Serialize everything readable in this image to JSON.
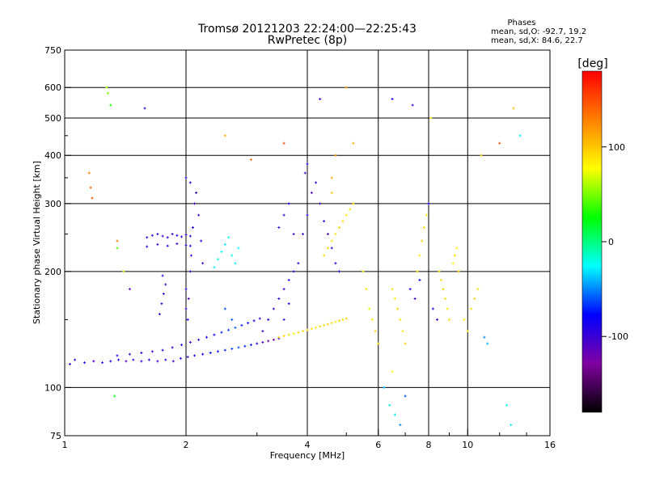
{
  "chart_data": {
    "type": "scatter",
    "title": "Tromsø 20121203 22:24:00—22:25:43",
    "subtitle": "RwPretec (8p)",
    "xlabel": "Frequency [MHz]",
    "ylabel": "Stationary phase Virtual Height [km]",
    "x_scale": "log",
    "y_scale": "log",
    "xlim": [
      1,
      16
    ],
    "ylim": [
      75,
      750
    ],
    "x_ticks": [
      1,
      2,
      4,
      6,
      8,
      10,
      16
    ],
    "y_ticks": [
      75,
      100,
      200,
      300,
      400,
      500,
      600,
      750
    ],
    "grid": true,
    "phases": {
      "heading": "Phases",
      "line_o": "mean, sd,O: -92.7, 19.2",
      "line_x": "mean, sd,X:  84.6, 22.7"
    },
    "colorbar": {
      "label": "[deg]",
      "min": -180,
      "max": 180,
      "ticks": [
        100,
        0,
        -100
      ],
      "tick_labels": [
        "100",
        "0",
        "-100"
      ],
      "colors": [
        "#ff0000",
        "#ff8000",
        "#ffff00",
        "#00ff00",
        "#00ffff",
        "#0000ff",
        "#8000a0",
        "#000000"
      ]
    },
    "series": [
      {
        "points": [
          [
            1.03,
            115,
            -95
          ],
          [
            1.06,
            118,
            -100
          ],
          [
            1.12,
            116,
            -90
          ],
          [
            1.18,
            117,
            -105
          ],
          [
            1.24,
            116,
            -95
          ],
          [
            1.3,
            117,
            -100
          ],
          [
            1.36,
            118,
            -90
          ],
          [
            1.42,
            117,
            -110
          ],
          [
            1.48,
            118,
            -95
          ],
          [
            1.55,
            117,
            -100
          ],
          [
            1.62,
            118,
            -90
          ],
          [
            1.7,
            117,
            -105
          ],
          [
            1.78,
            118,
            -95
          ],
          [
            1.86,
            117,
            -100
          ],
          [
            1.94,
            119,
            -90
          ],
          [
            2.02,
            120,
            -105
          ],
          [
            2.1,
            121,
            -95
          ],
          [
            2.2,
            122,
            -85
          ],
          [
            2.3,
            123,
            -80
          ],
          [
            2.4,
            124,
            -75
          ],
          [
            2.5,
            125,
            -70
          ],
          [
            2.6,
            126,
            -65
          ],
          [
            2.7,
            127,
            -60
          ],
          [
            2.8,
            128,
            -70
          ],
          [
            2.9,
            129,
            -75
          ],
          [
            3.0,
            130,
            -90
          ],
          [
            3.1,
            131,
            -110
          ],
          [
            3.2,
            132,
            -120
          ],
          [
            3.3,
            133,
            -130
          ],
          [
            3.4,
            134,
            -100
          ],
          [
            1.35,
            121,
            -95
          ],
          [
            1.45,
            122,
            -100
          ],
          [
            1.55,
            123,
            -90
          ],
          [
            1.65,
            124,
            -105
          ],
          [
            1.75,
            125,
            -95
          ],
          [
            1.85,
            127,
            -100
          ],
          [
            1.95,
            129,
            -90
          ],
          [
            2.05,
            131,
            -105
          ],
          [
            2.15,
            133,
            -95
          ],
          [
            2.25,
            135,
            -85
          ],
          [
            2.35,
            137,
            -80
          ],
          [
            2.45,
            139,
            -70
          ],
          [
            2.55,
            141,
            -65
          ],
          [
            2.65,
            143,
            -60
          ],
          [
            2.75,
            145,
            -70
          ],
          [
            2.85,
            147,
            -75
          ],
          [
            2.95,
            149,
            -90
          ],
          [
            3.05,
            151,
            -100
          ],
          [
            1.6,
            245,
            -95
          ],
          [
            1.65,
            248,
            -100
          ],
          [
            1.7,
            250,
            -90
          ],
          [
            1.75,
            247,
            -105
          ],
          [
            1.8,
            245,
            -95
          ],
          [
            1.85,
            250,
            -100
          ],
          [
            1.9,
            248,
            -90
          ],
          [
            1.95,
            246,
            -105
          ],
          [
            2.0,
            249,
            -95
          ],
          [
            2.05,
            247,
            -100
          ],
          [
            1.6,
            232,
            -95
          ],
          [
            1.7,
            235,
            -100
          ],
          [
            1.8,
            233,
            -90
          ],
          [
            1.9,
            236,
            -105
          ],
          [
            2.0,
            234,
            -95
          ],
          [
            2.05,
            233,
            -100
          ],
          [
            2.0,
            180,
            -95
          ],
          [
            2.0,
            160,
            -100
          ],
          [
            2.02,
            150,
            -90
          ],
          [
            2.03,
            170,
            -105
          ],
          [
            2.05,
            200,
            -95
          ],
          [
            2.06,
            220,
            -100
          ],
          [
            2.08,
            260,
            -90
          ],
          [
            2.1,
            300,
            -105
          ],
          [
            2.12,
            320,
            -95
          ],
          [
            2.15,
            280,
            -100
          ],
          [
            2.18,
            240,
            -90
          ],
          [
            2.2,
            210,
            -105
          ],
          [
            2.0,
            350,
            -100
          ],
          [
            2.05,
            340,
            -95
          ],
          [
            1.72,
            155,
            -95
          ],
          [
            1.74,
            165,
            -100
          ],
          [
            1.76,
            175,
            -90
          ],
          [
            1.78,
            185,
            -105
          ],
          [
            1.75,
            195,
            -95
          ],
          [
            2.35,
            205,
            -30
          ],
          [
            2.4,
            215,
            -20
          ],
          [
            2.45,
            225,
            -25
          ],
          [
            2.5,
            235,
            -30
          ],
          [
            2.55,
            245,
            -25
          ],
          [
            2.6,
            220,
            -20
          ],
          [
            2.65,
            210,
            -30
          ],
          [
            2.7,
            230,
            -25
          ],
          [
            2.5,
            160,
            -60
          ],
          [
            2.6,
            150,
            -60
          ],
          [
            3.1,
            140,
            -100
          ],
          [
            3.2,
            150,
            -90
          ],
          [
            3.3,
            160,
            -100
          ],
          [
            3.4,
            170,
            -90
          ],
          [
            3.5,
            180,
            -100
          ],
          [
            3.6,
            190,
            -90
          ],
          [
            3.7,
            200,
            -100
          ],
          [
            3.8,
            210,
            -90
          ],
          [
            3.5,
            150,
            -100
          ],
          [
            3.6,
            165,
            -90
          ],
          [
            3.4,
            260,
            -100
          ],
          [
            3.5,
            280,
            -100
          ],
          [
            3.6,
            300,
            -90
          ],
          [
            3.7,
            250,
            -100
          ],
          [
            3.9,
            250,
            -100
          ],
          [
            4.0,
            280,
            -90
          ],
          [
            4.1,
            320,
            -105
          ],
          [
            4.2,
            340,
            -95
          ],
          [
            4.3,
            300,
            -100
          ],
          [
            4.4,
            270,
            -90
          ],
          [
            4.5,
            250,
            -105
          ],
          [
            4.6,
            230,
            -95
          ],
          [
            4.7,
            210,
            -100
          ],
          [
            4.8,
            200,
            -90
          ],
          [
            3.95,
            360,
            -100
          ],
          [
            4.0,
            380,
            -90
          ],
          [
            3.4,
            135,
            90
          ],
          [
            3.5,
            136,
            95
          ],
          [
            3.6,
            137,
            90
          ],
          [
            3.7,
            138,
            85
          ],
          [
            3.8,
            139,
            95
          ],
          [
            3.9,
            140,
            90
          ],
          [
            4.0,
            141,
            95
          ],
          [
            4.1,
            142,
            90
          ],
          [
            4.2,
            143,
            85
          ],
          [
            4.3,
            144,
            95
          ],
          [
            4.4,
            145,
            90
          ],
          [
            4.5,
            146,
            95
          ],
          [
            4.6,
            147,
            90
          ],
          [
            4.7,
            148,
            85
          ],
          [
            4.8,
            149,
            95
          ],
          [
            4.9,
            150,
            90
          ],
          [
            5.0,
            151,
            95
          ],
          [
            4.4,
            220,
            90
          ],
          [
            4.5,
            230,
            95
          ],
          [
            4.6,
            240,
            85
          ],
          [
            4.7,
            250,
            90
          ],
          [
            4.8,
            260,
            95
          ],
          [
            4.9,
            270,
            90
          ],
          [
            5.0,
            280,
            85
          ],
          [
            5.1,
            290,
            90
          ],
          [
            5.2,
            300,
            95
          ],
          [
            4.6,
            350,
            110
          ],
          [
            4.7,
            400,
            120
          ],
          [
            4.6,
            320,
            100
          ],
          [
            5.5,
            200,
            80
          ],
          [
            5.6,
            180,
            90
          ],
          [
            5.7,
            160,
            70
          ],
          [
            5.8,
            150,
            85
          ],
          [
            5.9,
            140,
            95
          ],
          [
            6.0,
            130,
            90
          ],
          [
            6.5,
            180,
            90
          ],
          [
            6.6,
            170,
            85
          ],
          [
            6.7,
            160,
            95
          ],
          [
            6.8,
            150,
            90
          ],
          [
            6.9,
            140,
            85
          ],
          [
            7.0,
            130,
            95
          ],
          [
            6.2,
            100,
            -40
          ],
          [
            6.4,
            90,
            -20
          ],
          [
            6.6,
            85,
            -30
          ],
          [
            6.8,
            80,
            -50
          ],
          [
            7.0,
            95,
            -60
          ],
          [
            6.5,
            110,
            80
          ],
          [
            7.5,
            200,
            90
          ],
          [
            7.6,
            220,
            85
          ],
          [
            7.7,
            240,
            95
          ],
          [
            7.8,
            260,
            90
          ],
          [
            7.9,
            280,
            85
          ],
          [
            8.0,
            300,
            -90
          ],
          [
            8.5,
            200,
            85
          ],
          [
            8.6,
            190,
            90
          ],
          [
            8.7,
            180,
            95
          ],
          [
            8.8,
            170,
            90
          ],
          [
            8.9,
            160,
            85
          ],
          [
            9.0,
            150,
            90
          ],
          [
            9.2,
            210,
            80
          ],
          [
            9.3,
            220,
            90
          ],
          [
            9.4,
            230,
            85
          ],
          [
            9.5,
            200,
            95
          ],
          [
            7.2,
            180,
            -90
          ],
          [
            7.4,
            170,
            -100
          ],
          [
            7.6,
            190,
            -80
          ],
          [
            8.2,
            160,
            -100
          ],
          [
            8.4,
            150,
            -95
          ],
          [
            9.8,
            150,
            80
          ],
          [
            10.0,
            140,
            85
          ],
          [
            10.2,
            160,
            90
          ],
          [
            10.4,
            170,
            95
          ],
          [
            10.6,
            180,
            90
          ],
          [
            11.0,
            135,
            -50
          ],
          [
            11.2,
            130,
            -40
          ],
          [
            12.8,
            80,
            -30
          ],
          [
            1.15,
            360,
            130
          ],
          [
            1.16,
            330,
            140
          ],
          [
            1.17,
            310,
            150
          ],
          [
            1.27,
            600,
            60
          ],
          [
            1.28,
            580,
            50
          ],
          [
            1.3,
            540,
            30
          ],
          [
            1.35,
            240,
            130
          ],
          [
            1.4,
            200,
            70
          ],
          [
            1.45,
            180,
            -120
          ],
          [
            1.35,
            230,
            40
          ],
          [
            1.33,
            95,
            20
          ],
          [
            1.58,
            530,
            -100
          ],
          [
            2.5,
            450,
            110
          ],
          [
            2.9,
            390,
            140
          ],
          [
            3.5,
            430,
            150
          ],
          [
            4.3,
            560,
            -100
          ],
          [
            5.0,
            600,
            120
          ],
          [
            5.2,
            430,
            110
          ],
          [
            6.5,
            560,
            -90
          ],
          [
            7.3,
            540,
            -100
          ],
          [
            8.1,
            500,
            90
          ],
          [
            10.8,
            400,
            95
          ],
          [
            12.0,
            430,
            150
          ],
          [
            13.5,
            450,
            -30
          ],
          [
            13.0,
            530,
            100
          ],
          [
            12.5,
            90,
            -20
          ]
        ]
      }
    ]
  }
}
